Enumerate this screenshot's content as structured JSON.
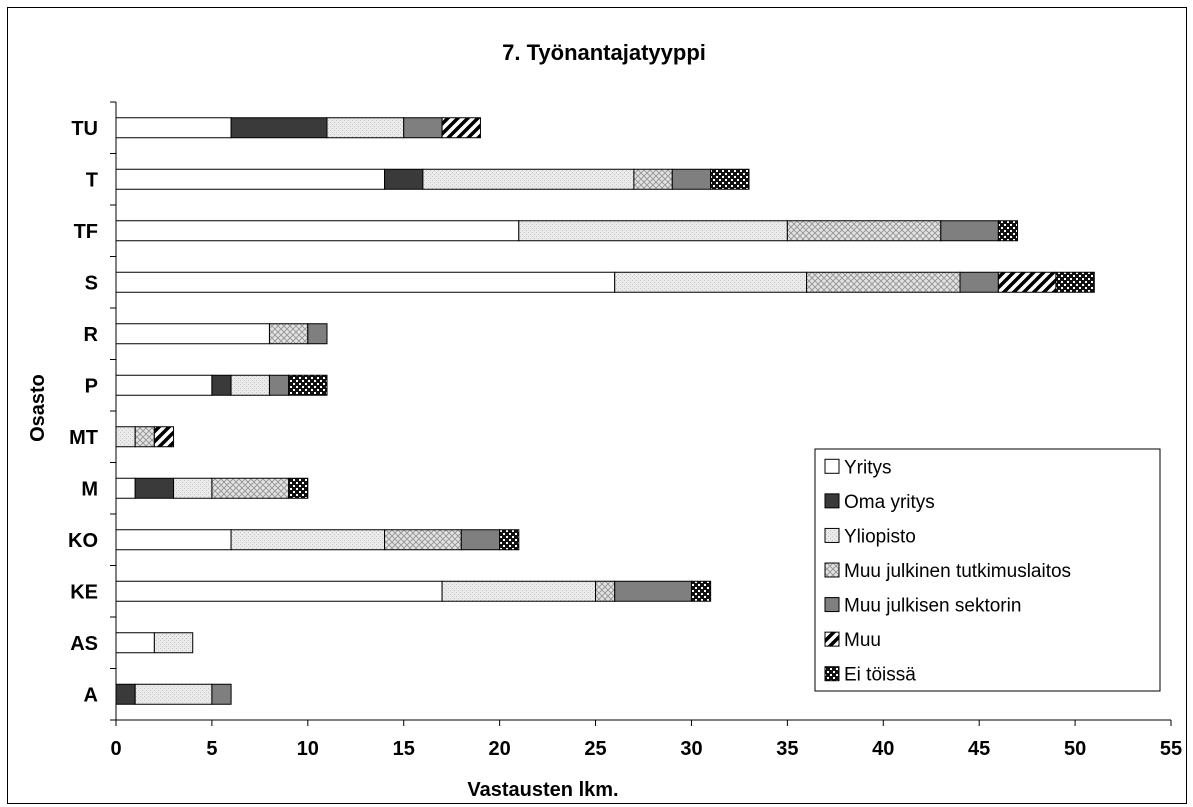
{
  "chart_data": {
    "type": "bar",
    "orientation": "horizontal",
    "stacked": true,
    "title": "7. Työnantajatyyppi",
    "xlabel": "Vastausten lkm.",
    "ylabel": "Osasto",
    "xlim": [
      0,
      55
    ],
    "xticks": [
      0,
      5,
      10,
      15,
      20,
      25,
      30,
      35,
      40,
      45,
      50,
      55
    ],
    "grid": false,
    "legend_position": "bottom-right",
    "categories": [
      "TU",
      "T",
      "TF",
      "S",
      "R",
      "P",
      "MT",
      "M",
      "KO",
      "KE",
      "AS",
      "A"
    ],
    "series": [
      {
        "name": "Yritys",
        "pattern": "white",
        "values": [
          6,
          14,
          21,
          26,
          8,
          5,
          0,
          1,
          6,
          17,
          2,
          0
        ]
      },
      {
        "name": "Oma yritys",
        "pattern": "dark",
        "values": [
          5,
          2,
          0,
          0,
          0,
          1,
          0,
          2,
          0,
          0,
          0,
          1
        ]
      },
      {
        "name": "Yliopisto",
        "pattern": "lightgray",
        "values": [
          4,
          11,
          14,
          10,
          0,
          2,
          1,
          2,
          8,
          8,
          2,
          4
        ]
      },
      {
        "name": "Muu julkinen tutkimuslaitos",
        "pattern": "crosshatch",
        "values": [
          0,
          2,
          8,
          8,
          2,
          0,
          1,
          4,
          4,
          1,
          0,
          0
        ]
      },
      {
        "name": "Muu julkisen sektorin",
        "pattern": "gray",
        "values": [
          2,
          2,
          3,
          2,
          1,
          1,
          0,
          0,
          2,
          4,
          0,
          1
        ]
      },
      {
        "name": "Muu",
        "pattern": "diagonal",
        "values": [
          2,
          0,
          0,
          3,
          0,
          0,
          1,
          0,
          0,
          0,
          0,
          0
        ]
      },
      {
        "name": "Ei töissä",
        "pattern": "checker",
        "values": [
          0,
          2,
          1,
          2,
          0,
          2,
          0,
          1,
          1,
          1,
          0,
          0
        ]
      }
    ],
    "colors": {
      "white": "#ffffff",
      "dark": "#3a3a3a",
      "lightgray": "#e6e6e6",
      "gray": "#7f7f7f",
      "outline": "#000000"
    }
  }
}
